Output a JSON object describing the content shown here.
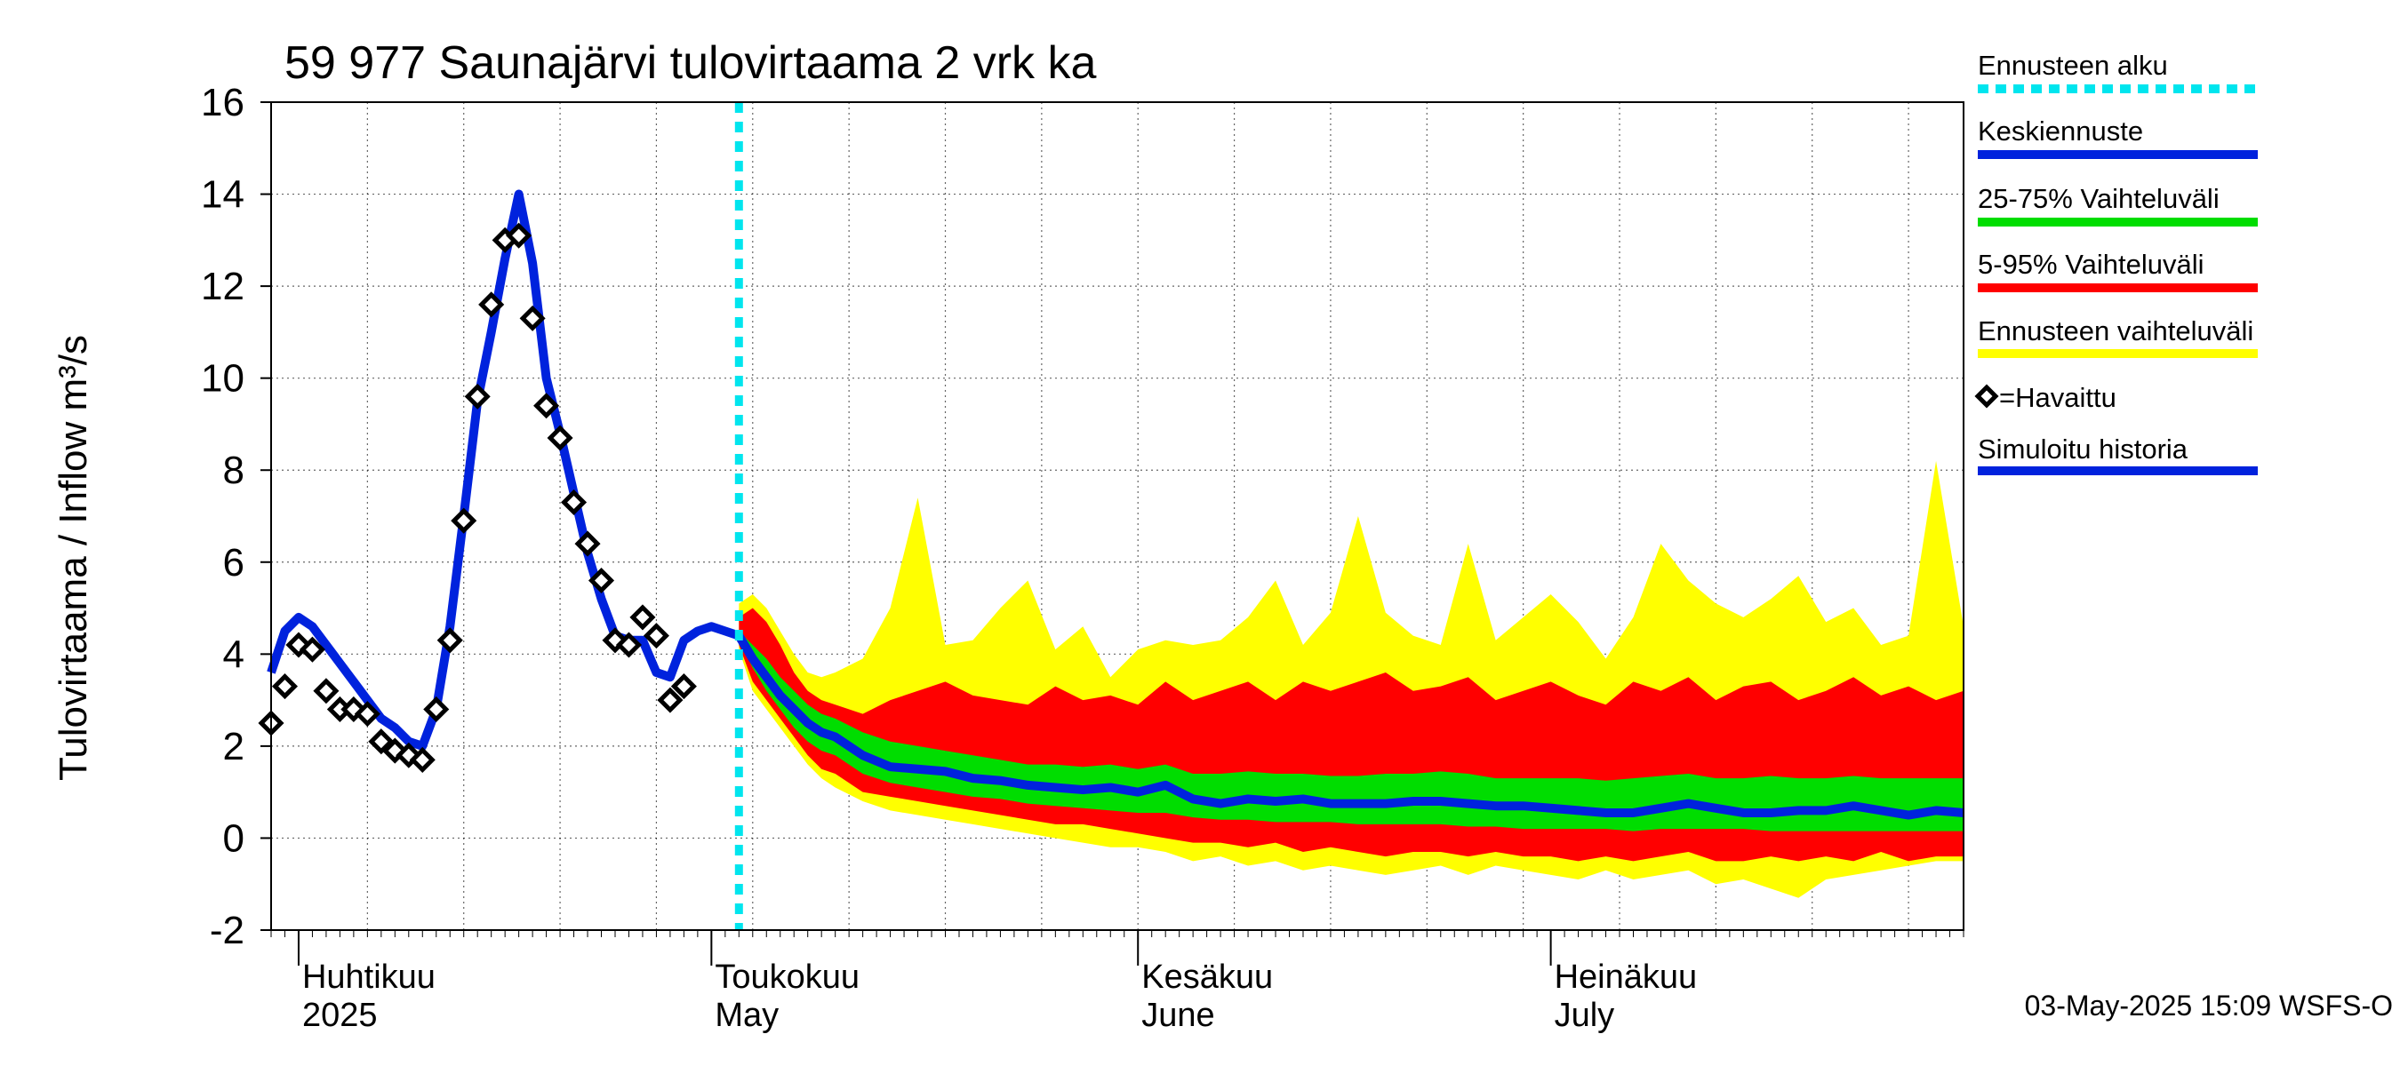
{
  "chart_data": {
    "type": "area",
    "title": "59 977 Saunajärvi tulovirtaama 2 vrk ka",
    "ylabel": "Tulovirtaama / Inflow    m³/s",
    "ylim": [
      -2,
      16
    ],
    "yticks": [
      -2,
      0,
      2,
      4,
      6,
      8,
      10,
      12,
      14,
      16
    ],
    "x_range": [
      "2025-03-30",
      "2025-07-31"
    ],
    "grid": true,
    "legend_position": "right",
    "month_labels": [
      {
        "date": "2025-04-01",
        "fi": "Huhtikuu",
        "en": "2025"
      },
      {
        "date": "2025-05-01",
        "fi": "Toukokuu",
        "en": "May"
      },
      {
        "date": "2025-06-01",
        "fi": "Kesäkuu",
        "en": "June"
      },
      {
        "date": "2025-07-01",
        "fi": "Heinäkuu",
        "en": "July"
      }
    ],
    "forecast_start": "2025-05-03",
    "footer": "03-May-2025 15:09 WSFS-O",
    "legend": [
      {
        "label": "Ennusteen alku",
        "color": "#00e5ee",
        "style": "dotted"
      },
      {
        "label": "Keskiennuste",
        "color": "#0022dd",
        "style": "line"
      },
      {
        "label": "25-75% Vaihteluväli",
        "color": "#00dd00",
        "style": "line"
      },
      {
        "label": "5-95% Vaihteluväli",
        "color": "#ff0000",
        "style": "line"
      },
      {
        "label": "Ennusteen vaihteluväli",
        "color": "#ffff00",
        "style": "line"
      },
      {
        "label": "=Havaittu",
        "color": "#000000",
        "style": "diamond"
      },
      {
        "label": "Simuloitu historia",
        "color": "#0022dd",
        "style": "line"
      }
    ],
    "observed": {
      "name": "Havaittu",
      "x": [
        "2025-03-30",
        "2025-03-31",
        "2025-04-01",
        "2025-04-02",
        "2025-04-03",
        "2025-04-04",
        "2025-04-05",
        "2025-04-06",
        "2025-04-07",
        "2025-04-08",
        "2025-04-09",
        "2025-04-10",
        "2025-04-11",
        "2025-04-12",
        "2025-04-13",
        "2025-04-14",
        "2025-04-15",
        "2025-04-16",
        "2025-04-17",
        "2025-04-18",
        "2025-04-19",
        "2025-04-20",
        "2025-04-21",
        "2025-04-22",
        "2025-04-23",
        "2025-04-24",
        "2025-04-25",
        "2025-04-26",
        "2025-04-27",
        "2025-04-28",
        "2025-04-29",
        "2025-04-30",
        "2025-05-01",
        "2025-05-02"
      ],
      "values": [
        2.5,
        3.3,
        4.2,
        4.1,
        3.2,
        2.8,
        2.8,
        2.7,
        2.1,
        1.9,
        1.8,
        1.7,
        2.8,
        4.3,
        6.9,
        9.6,
        11.6,
        13.0,
        13.1,
        11.3,
        9.4,
        8.7,
        7.3,
        6.4,
        5.6,
        4.3,
        4.2,
        4.8,
        4.4,
        3.0,
        3.3,
        null,
        null,
        null
      ]
    },
    "simulated_history": {
      "name": "Simuloitu historia",
      "x": [
        "2025-03-30",
        "2025-03-31",
        "2025-04-01",
        "2025-04-02",
        "2025-04-03",
        "2025-04-04",
        "2025-04-05",
        "2025-04-06",
        "2025-04-07",
        "2025-04-08",
        "2025-04-09",
        "2025-04-10",
        "2025-04-11",
        "2025-04-12",
        "2025-04-13",
        "2025-04-14",
        "2025-04-15",
        "2025-04-16",
        "2025-04-17",
        "2025-04-18",
        "2025-04-19",
        "2025-04-20",
        "2025-04-21",
        "2025-04-22",
        "2025-04-23",
        "2025-04-24",
        "2025-04-25",
        "2025-04-26",
        "2025-04-27",
        "2025-04-28",
        "2025-04-29",
        "2025-04-30",
        "2025-05-01",
        "2025-05-02",
        "2025-05-03"
      ],
      "values": [
        3.6,
        4.5,
        4.8,
        4.6,
        4.2,
        3.8,
        3.4,
        3.0,
        2.6,
        2.4,
        2.1,
        2.0,
        2.8,
        4.6,
        7.0,
        9.5,
        11.0,
        12.6,
        14.0,
        12.5,
        10.0,
        8.8,
        7.5,
        6.2,
        5.2,
        4.4,
        4.3,
        4.3,
        3.6,
        3.5,
        4.3,
        4.5,
        4.6,
        4.5,
        4.4
      ]
    },
    "forecast": {
      "x": [
        "2025-05-03",
        "2025-05-04",
        "2025-05-05",
        "2025-05-06",
        "2025-05-07",
        "2025-05-08",
        "2025-05-09",
        "2025-05-10",
        "2025-05-12",
        "2025-05-14",
        "2025-05-16",
        "2025-05-18",
        "2025-05-20",
        "2025-05-22",
        "2025-05-24",
        "2025-05-26",
        "2025-05-28",
        "2025-05-30",
        "2025-06-01",
        "2025-06-03",
        "2025-06-05",
        "2025-06-07",
        "2025-06-09",
        "2025-06-11",
        "2025-06-13",
        "2025-06-15",
        "2025-06-17",
        "2025-06-19",
        "2025-06-21",
        "2025-06-23",
        "2025-06-25",
        "2025-06-27",
        "2025-06-29",
        "2025-07-01",
        "2025-07-03",
        "2025-07-05",
        "2025-07-07",
        "2025-07-09",
        "2025-07-11",
        "2025-07-13",
        "2025-07-15",
        "2025-07-17",
        "2025-07-19",
        "2025-07-21",
        "2025-07-23",
        "2025-07-25",
        "2025-07-27",
        "2025-07-29",
        "2025-07-31"
      ],
      "median": [
        4.4,
        3.9,
        3.5,
        3.1,
        2.8,
        2.5,
        2.3,
        2.2,
        1.8,
        1.55,
        1.5,
        1.45,
        1.3,
        1.25,
        1.15,
        1.1,
        1.05,
        1.1,
        1.0,
        1.15,
        0.85,
        0.75,
        0.85,
        0.8,
        0.85,
        0.75,
        0.75,
        0.75,
        0.8,
        0.8,
        0.75,
        0.7,
        0.7,
        0.65,
        0.6,
        0.55,
        0.55,
        0.65,
        0.75,
        0.65,
        0.55,
        0.55,
        0.6,
        0.6,
        0.7,
        0.6,
        0.5,
        0.6,
        0.55
      ],
      "p25": [
        4.3,
        3.7,
        3.2,
        2.8,
        2.4,
        2.1,
        1.9,
        1.8,
        1.4,
        1.2,
        1.1,
        1.0,
        0.9,
        0.85,
        0.75,
        0.7,
        0.65,
        0.6,
        0.55,
        0.55,
        0.45,
        0.4,
        0.4,
        0.35,
        0.35,
        0.35,
        0.3,
        0.3,
        0.3,
        0.3,
        0.25,
        0.25,
        0.2,
        0.2,
        0.2,
        0.2,
        0.15,
        0.2,
        0.2,
        0.2,
        0.2,
        0.15,
        0.15,
        0.15,
        0.15,
        0.15,
        0.15,
        0.15,
        0.15
      ],
      "p75": [
        4.5,
        4.2,
        3.9,
        3.5,
        3.2,
        2.9,
        2.7,
        2.6,
        2.3,
        2.1,
        2.0,
        1.9,
        1.8,
        1.7,
        1.6,
        1.6,
        1.55,
        1.6,
        1.5,
        1.6,
        1.4,
        1.4,
        1.45,
        1.4,
        1.4,
        1.35,
        1.35,
        1.4,
        1.4,
        1.45,
        1.4,
        1.3,
        1.3,
        1.3,
        1.3,
        1.25,
        1.3,
        1.35,
        1.4,
        1.3,
        1.3,
        1.35,
        1.3,
        1.3,
        1.35,
        1.3,
        1.3,
        1.3,
        1.3
      ],
      "p05": [
        4.2,
        3.4,
        3.0,
        2.6,
        2.2,
        1.8,
        1.5,
        1.4,
        1.0,
        0.9,
        0.8,
        0.7,
        0.6,
        0.5,
        0.4,
        0.3,
        0.3,
        0.2,
        0.1,
        0.0,
        -0.1,
        -0.1,
        -0.2,
        -0.1,
        -0.3,
        -0.2,
        -0.3,
        -0.4,
        -0.3,
        -0.3,
        -0.4,
        -0.3,
        -0.4,
        -0.4,
        -0.5,
        -0.4,
        -0.5,
        -0.4,
        -0.3,
        -0.5,
        -0.5,
        -0.4,
        -0.5,
        -0.4,
        -0.5,
        -0.3,
        -0.5,
        -0.4,
        -0.4
      ],
      "p95": [
        4.8,
        5.0,
        4.7,
        4.2,
        3.6,
        3.2,
        3.0,
        2.9,
        2.7,
        3.0,
        3.2,
        3.4,
        3.1,
        3.0,
        2.9,
        3.3,
        3.0,
        3.1,
        2.9,
        3.4,
        3.0,
        3.2,
        3.4,
        3.0,
        3.4,
        3.2,
        3.4,
        3.6,
        3.2,
        3.3,
        3.5,
        3.0,
        3.2,
        3.4,
        3.1,
        2.9,
        3.4,
        3.2,
        3.5,
        3.0,
        3.3,
        3.4,
        3.0,
        3.2,
        3.5,
        3.1,
        3.3,
        3.0,
        3.2
      ],
      "min": [
        4.1,
        3.2,
        2.8,
        2.4,
        2.0,
        1.6,
        1.3,
        1.1,
        0.8,
        0.6,
        0.5,
        0.4,
        0.3,
        0.2,
        0.1,
        0.0,
        -0.1,
        -0.2,
        -0.2,
        -0.3,
        -0.5,
        -0.4,
        -0.6,
        -0.5,
        -0.7,
        -0.6,
        -0.7,
        -0.8,
        -0.7,
        -0.6,
        -0.8,
        -0.6,
        -0.7,
        -0.8,
        -0.9,
        -0.7,
        -0.9,
        -0.8,
        -0.7,
        -1.0,
        -0.9,
        -1.1,
        -1.3,
        -0.9,
        -0.8,
        -0.7,
        -0.6,
        -0.5,
        -0.5
      ],
      "max": [
        5.1,
        5.3,
        5.0,
        4.5,
        4.0,
        3.6,
        3.5,
        3.6,
        3.9,
        5.0,
        7.4,
        4.2,
        4.3,
        5.0,
        5.6,
        4.1,
        4.6,
        3.5,
        4.1,
        4.3,
        4.2,
        4.3,
        4.8,
        5.6,
        4.2,
        4.9,
        7.0,
        4.9,
        4.4,
        4.2,
        6.4,
        4.3,
        4.8,
        5.3,
        4.7,
        3.9,
        4.8,
        6.4,
        5.6,
        5.1,
        4.8,
        5.2,
        5.7,
        4.7,
        5.0,
        4.2,
        4.4,
        8.2,
        4.6
      ]
    }
  }
}
